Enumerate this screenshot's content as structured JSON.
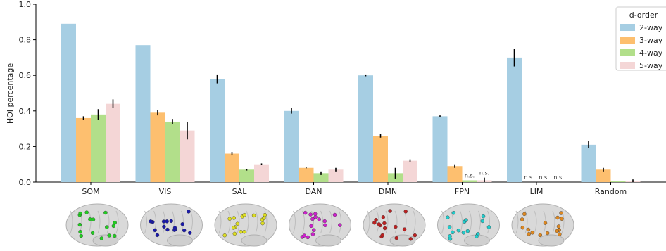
{
  "chart_data": {
    "type": "bar",
    "categories": [
      "SOM",
      "VIS",
      "SAL",
      "DAN",
      "DMN",
      "FPN",
      "LIM",
      "Random"
    ],
    "ylabel": "HOI percentage",
    "xlabel": "",
    "ylim": [
      0,
      1.0
    ],
    "yticks": [
      0.0,
      0.2,
      0.4,
      0.6,
      0.8,
      1.0
    ],
    "legend_title": "d-order",
    "legend_position": "top-right",
    "series": [
      {
        "name": "2-way",
        "color": "#a6cee3",
        "values": [
          0.89,
          0.77,
          0.58,
          0.4,
          0.6,
          0.37,
          0.7,
          0.21
        ],
        "errors": [
          0.0,
          0.0,
          0.025,
          0.015,
          0.005,
          0.005,
          0.05,
          0.02
        ]
      },
      {
        "name": "3-way",
        "color": "#fdbf6f",
        "values": [
          0.36,
          0.39,
          0.16,
          0.08,
          0.26,
          0.09,
          null,
          0.07
        ],
        "errors": [
          0.01,
          0.015,
          0.01,
          0.002,
          0.01,
          0.01,
          null,
          0.01
        ]
      },
      {
        "name": "4-way",
        "color": "#b2df8a",
        "values": [
          0.38,
          0.34,
          0.07,
          0.05,
          0.05,
          0.01,
          null,
          0.005
        ],
        "errors": [
          0.03,
          0.015,
          0.005,
          0.01,
          0.03,
          0.0,
          null,
          0.0
        ]
      },
      {
        "name": "5-way",
        "color": "#f4d6d6",
        "values": [
          0.44,
          0.29,
          0.1,
          0.07,
          0.12,
          0.01,
          null,
          0.005
        ],
        "errors": [
          0.025,
          0.05,
          0.005,
          0.01,
          0.008,
          0.015,
          null,
          0.01
        ]
      }
    ],
    "annotations": [
      {
        "category": "FPN",
        "series": "4-way",
        "text": "n.s."
      },
      {
        "category": "FPN",
        "series": "5-way",
        "text": "n.s."
      },
      {
        "category": "LIM",
        "series": "3-way",
        "text": "n.s."
      },
      {
        "category": "LIM",
        "series": "4-way",
        "text": "n.s."
      },
      {
        "category": "LIM",
        "series": "5-way",
        "text": "n.s."
      }
    ],
    "brain_dot_colors": [
      "#22cc22",
      "#1a1aaa",
      "#dddd22",
      "#cc22cc",
      "#bb2222",
      "#22cccc",
      "#dd8822"
    ]
  }
}
